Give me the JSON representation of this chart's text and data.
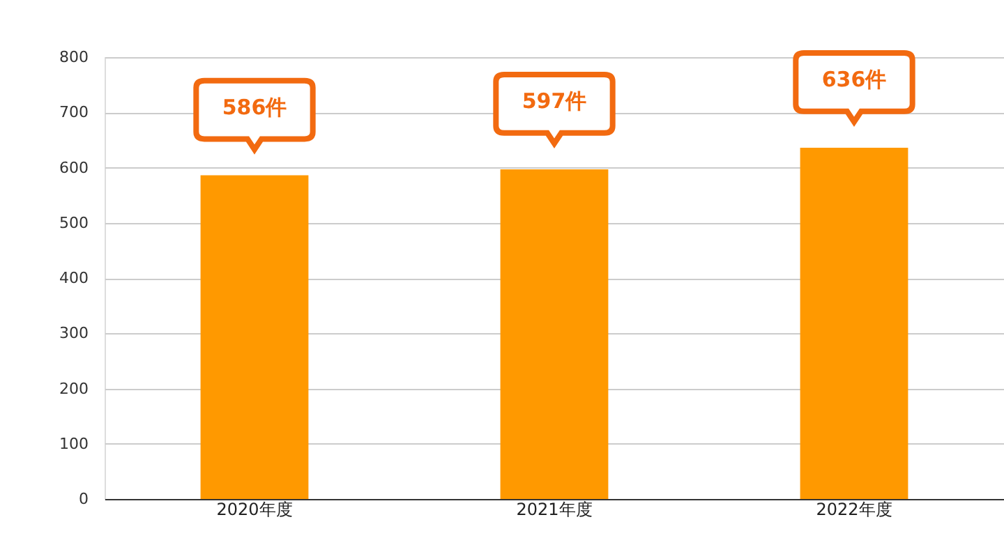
{
  "chart_data": {
    "type": "bar",
    "categories": [
      "2020年度",
      "2021年度",
      "2022年度"
    ],
    "values": [
      586,
      597,
      636
    ],
    "color": "#ff9900",
    "value_labels": [
      "586件",
      "597件",
      "636件"
    ],
    "ylim": [
      0,
      800
    ],
    "yticks": [
      0,
      100,
      200,
      300,
      400,
      500,
      600,
      700,
      800
    ],
    "grid": "y"
  }
}
